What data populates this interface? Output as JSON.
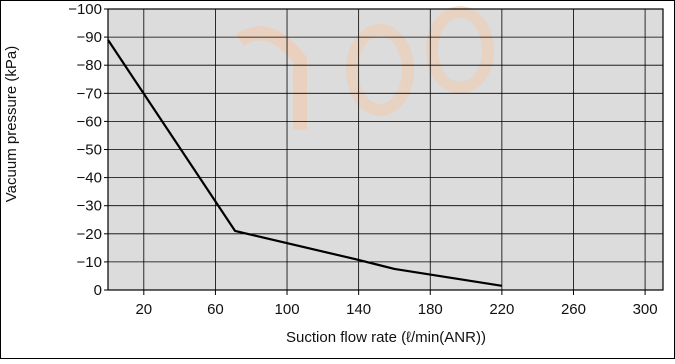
{
  "chart_data": {
    "type": "line",
    "xlabel": "Suction flow rate (ℓ/min(ANR))",
    "ylabel": "Vacuum pressure (kPa)",
    "xlim": [
      0,
      310
    ],
    "ylim": [
      0,
      -100
    ],
    "x_ticks": [
      20,
      60,
      100,
      140,
      180,
      220,
      260,
      300
    ],
    "x_tick_labels": [
      "20",
      "60",
      "100",
      "140",
      "180",
      "220",
      "260",
      "300"
    ],
    "y_ticks": [
      -100,
      -90,
      -80,
      -70,
      -60,
      -50,
      -40,
      -30,
      -20,
      -10,
      0
    ],
    "y_tick_labels": [
      "−100",
      "−90",
      "−80",
      "−70",
      "−60",
      "−50",
      "−40",
      "−30",
      "−20",
      "−10",
      "0"
    ],
    "grid": true,
    "background_color": "#dcdcdc",
    "line_color": "#000000",
    "series": [
      {
        "x": [
          0,
          71,
          138,
          160,
          220
        ],
        "y": [
          -89,
          -21,
          -11,
          -7.5,
          -1.5
        ]
      }
    ]
  }
}
